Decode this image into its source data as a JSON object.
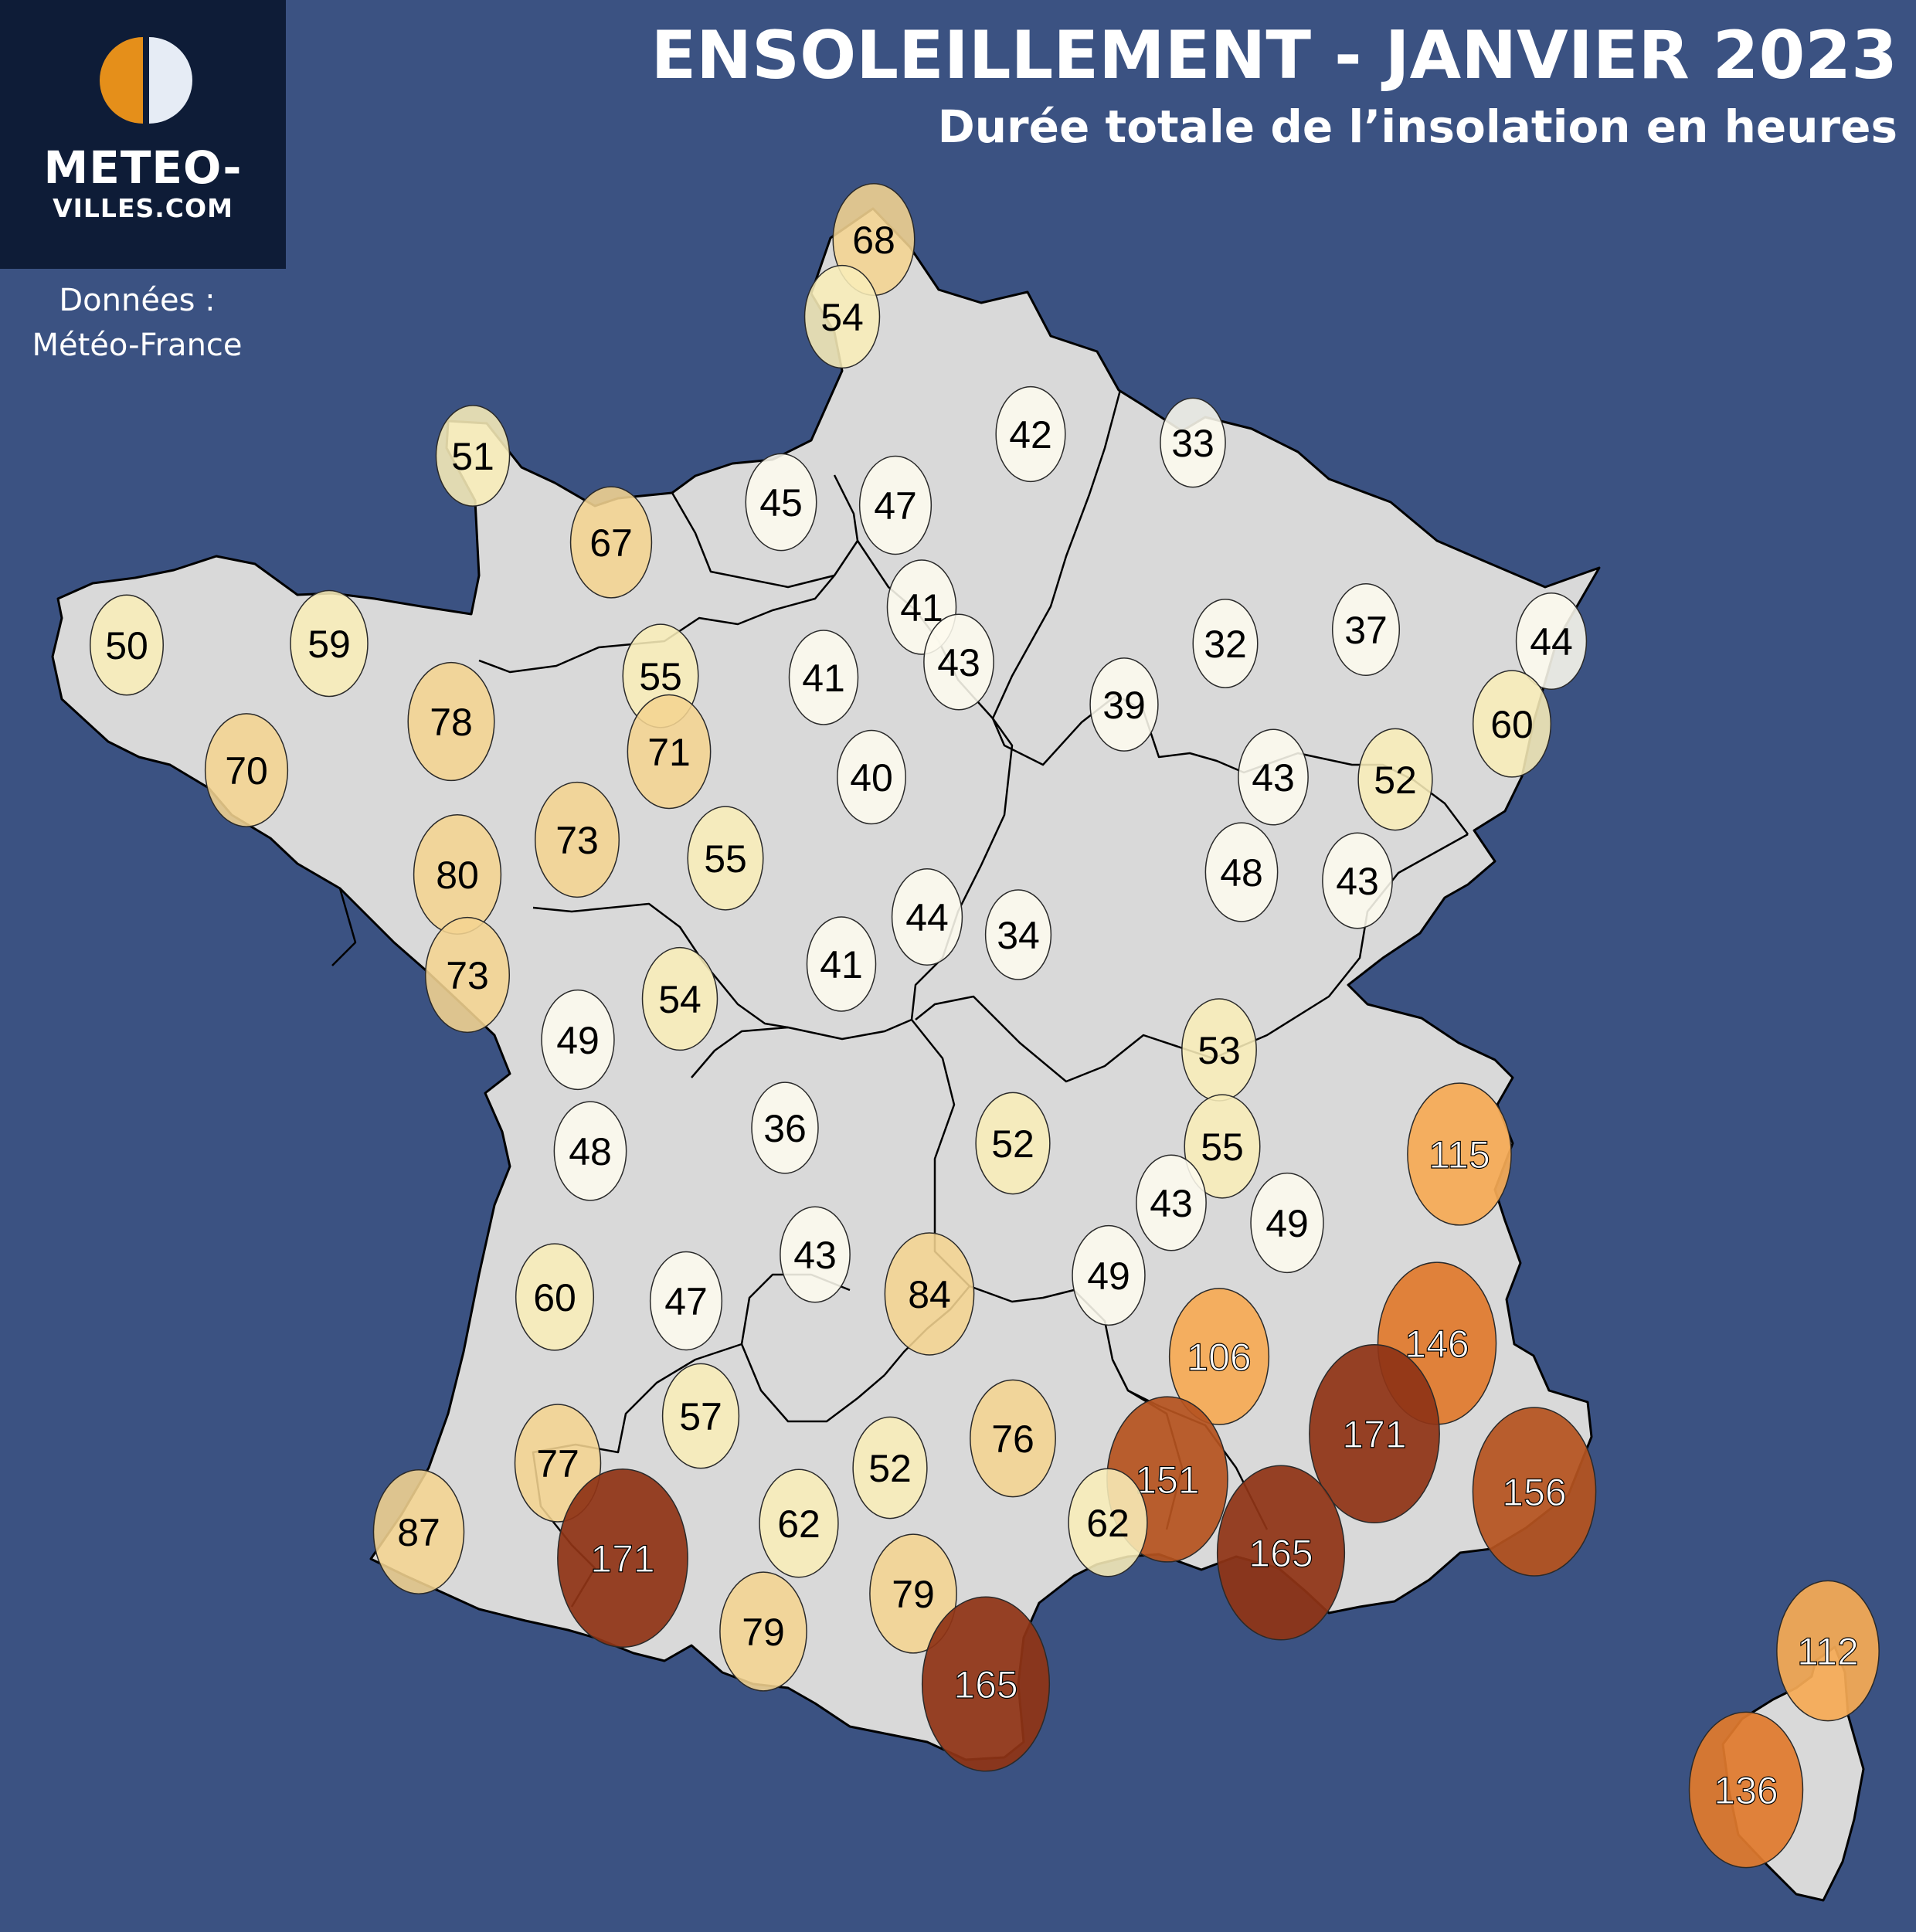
{
  "title": "ENSOLEILLEMENT - JANVIER 2023",
  "subtitle": "Durée totale de l’insolation en heures",
  "logo": {
    "line1": "METEO-",
    "line2": "VILLES.COM",
    "icon": "sun-half-icon"
  },
  "source": {
    "line1": "Données :",
    "line2": "Météo-France"
  },
  "colors": {
    "ocean": "#3b5282",
    "land": "#d9d9d9",
    "border": "#000000",
    "logo_bg": "#0e1c37",
    "logo_orange": "#e58f1a",
    "logo_light": "#e6ecf5",
    "scale": [
      "#fdfbee",
      "#f8edb8",
      "#f4d491",
      "#f5aa55",
      "#e07a2d",
      "#b5531f",
      "#8f3415"
    ]
  },
  "stations": [
    {
      "value": 68
    },
    {
      "value": 54
    },
    {
      "value": 42
    },
    {
      "value": 33
    },
    {
      "value": 51
    },
    {
      "value": 45
    },
    {
      "value": 47
    },
    {
      "value": 67
    },
    {
      "value": 41
    },
    {
      "value": 50
    },
    {
      "value": 59
    },
    {
      "value": 55
    },
    {
      "value": 43
    },
    {
      "value": 41
    },
    {
      "value": 32
    },
    {
      "value": 37
    },
    {
      "value": 44
    },
    {
      "value": 78
    },
    {
      "value": 70
    },
    {
      "value": 71
    },
    {
      "value": 40
    },
    {
      "value": 39
    },
    {
      "value": 60
    },
    {
      "value": 43
    },
    {
      "value": 52
    },
    {
      "value": 73
    },
    {
      "value": 80
    },
    {
      "value": 55
    },
    {
      "value": 48
    },
    {
      "value": 43
    },
    {
      "value": 44
    },
    {
      "value": 34
    },
    {
      "value": 73
    },
    {
      "value": 54
    },
    {
      "value": 41
    },
    {
      "value": 49
    },
    {
      "value": 53
    },
    {
      "value": 36
    },
    {
      "value": 48
    },
    {
      "value": 52
    },
    {
      "value": 55
    },
    {
      "value": 115
    },
    {
      "value": 43
    },
    {
      "value": 49
    },
    {
      "value": 43
    },
    {
      "value": 60
    },
    {
      "value": 47
    },
    {
      "value": 84
    },
    {
      "value": 49
    },
    {
      "value": 106
    },
    {
      "value": 146
    },
    {
      "value": 57
    },
    {
      "value": 171
    },
    {
      "value": 76
    },
    {
      "value": 77
    },
    {
      "value": 52
    },
    {
      "value": 151
    },
    {
      "value": 156
    },
    {
      "value": 87
    },
    {
      "value": 62
    },
    {
      "value": 171
    },
    {
      "value": 165
    },
    {
      "value": 62
    },
    {
      "value": 79
    },
    {
      "value": 79
    },
    {
      "value": 112
    },
    {
      "value": 165
    },
    {
      "value": 136
    }
  ]
}
